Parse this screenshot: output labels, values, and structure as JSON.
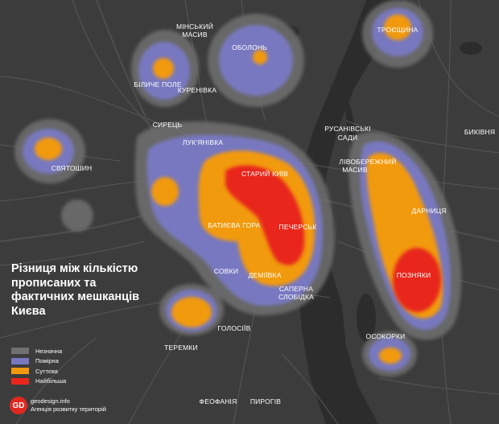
{
  "map": {
    "title": "Різниця між кількістю прописаних та фактичних мешканців Києва",
    "colors": {
      "background": "#3c3c3c",
      "water": "#2c2c2c",
      "roads": "#565656",
      "level_low": "#707070",
      "level_moderate": "#7878c0",
      "level_significant": "#f29a0f",
      "level_highest": "#e8261b"
    },
    "legend": [
      {
        "label": "Незначна",
        "color": "#707070"
      },
      {
        "label": "Помірна",
        "color": "#7878c0"
      },
      {
        "label": "Суттєва",
        "color": "#f29a0f"
      },
      {
        "label": "Найбільша",
        "color": "#e8261b"
      }
    ],
    "districts": {
      "minskyi_line1": "МІНСЬКИЙ",
      "minskyi_line2": "МАСИВ",
      "obolon": "ОБОЛОНЬ",
      "troieshchyna": "ТРОЄЩИНА",
      "bilychepole": "БІЛИЧЕ ПОЛЕ",
      "kurenivka": "КУРЕНІВКА",
      "syrets": "СИРЕЦЬ",
      "lukianivka": "ЛУК'ЯНІВКА",
      "sviatoshyn": "СВЯТОШИН",
      "staryi_kyiv": "СТАРИЙ КИЇВ",
      "batyieva_hora": "БАТИЄВА ГОРА",
      "pechersk": "ПЕЧЕРСЬК",
      "rusanivski_line1": "РУСАНІВСЬКІ",
      "rusanivski_line2": "САДИ",
      "livoberezhnyi_line1": "ЛІВОБЕРЕЖНИЙ",
      "livoberezhnyi_line2": "МАСИВ",
      "bykivnia": "БИКІВНЯ",
      "darnytsia": "ДАРНИЦЯ",
      "pozniaky": "ПОЗНЯКИ",
      "sovky": "СОВКИ",
      "demiivka": "ДЕМІЇВКА",
      "saperna_line1": "САПЕРНА",
      "saperna_line2": "СЛОБІДКА",
      "holosiiv": "ГОЛОСІЇВ",
      "teremky": "ТЕРЕМКИ",
      "osokorky": "ОСОКОРКИ",
      "feofaniia": "ФЕОФАНІЯ",
      "pyrohiv": "ПИРОГІВ"
    },
    "brand": {
      "logo_text": "GD",
      "site": "geodesign.info",
      "tagline": "Агенція розвитку територій"
    }
  }
}
